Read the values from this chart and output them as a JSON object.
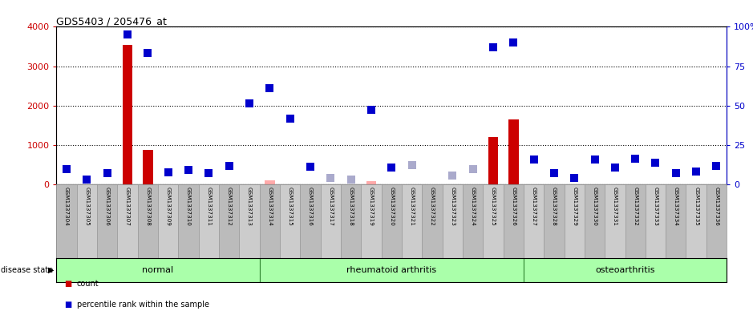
{
  "title": "GDS5403 / 205476_at",
  "samples": [
    "GSM1337304",
    "GSM1337305",
    "GSM1337306",
    "GSM1337307",
    "GSM1337308",
    "GSM1337309",
    "GSM1337310",
    "GSM1337311",
    "GSM1337312",
    "GSM1337313",
    "GSM1337314",
    "GSM1337315",
    "GSM1337316",
    "GSM1337317",
    "GSM1337318",
    "GSM1337319",
    "GSM1337320",
    "GSM1337321",
    "GSM1337322",
    "GSM1337323",
    "GSM1337324",
    "GSM1337325",
    "GSM1337326",
    "GSM1337327",
    "GSM1337328",
    "GSM1337329",
    "GSM1337330",
    "GSM1337331",
    "GSM1337332",
    "GSM1337333",
    "GSM1337334",
    "GSM1337335",
    "GSM1337336"
  ],
  "count_values": [
    0,
    0,
    0,
    3550,
    880,
    0,
    0,
    0,
    0,
    0,
    0,
    0,
    0,
    0,
    0,
    0,
    0,
    0,
    0,
    0,
    0,
    1200,
    1650,
    0,
    0,
    0,
    0,
    0,
    0,
    0,
    0,
    0,
    0
  ],
  "count_absent": [
    false,
    false,
    false,
    false,
    false,
    false,
    false,
    false,
    false,
    false,
    false,
    false,
    false,
    false,
    false,
    false,
    false,
    false,
    false,
    false,
    false,
    false,
    false,
    false,
    false,
    false,
    false,
    false,
    false,
    false,
    false,
    false,
    false
  ],
  "count_absent_values": [
    0,
    0,
    0,
    0,
    0,
    0,
    0,
    0,
    0,
    0,
    90,
    0,
    0,
    0,
    0,
    80,
    0,
    0,
    0,
    0,
    0,
    0,
    0,
    0,
    0,
    0,
    0,
    0,
    0,
    0,
    0,
    0,
    0
  ],
  "percentile_values": [
    380,
    130,
    290,
    3800,
    3330,
    300,
    370,
    290,
    470,
    2060,
    2450,
    1660,
    450,
    0,
    0,
    1900,
    420,
    0,
    0,
    0,
    0,
    3480,
    3600,
    620,
    290,
    170,
    620,
    430,
    650,
    550,
    280,
    330,
    470
  ],
  "percentile_absent": [
    false,
    false,
    false,
    false,
    false,
    false,
    false,
    false,
    false,
    false,
    false,
    false,
    false,
    true,
    true,
    false,
    false,
    true,
    true,
    true,
    true,
    false,
    false,
    false,
    false,
    false,
    false,
    false,
    false,
    false,
    false,
    false,
    false
  ],
  "percentile_absent_values": [
    0,
    0,
    0,
    0,
    0,
    0,
    0,
    0,
    0,
    0,
    0,
    0,
    0,
    160,
    130,
    0,
    0,
    490,
    0,
    230,
    380,
    0,
    0,
    0,
    0,
    0,
    0,
    0,
    0,
    0,
    0,
    0,
    0
  ],
  "groups": [
    {
      "label": "normal",
      "start": 0,
      "end": 9
    },
    {
      "label": "rheumatoid arthritis",
      "start": 10,
      "end": 22
    },
    {
      "label": "osteoarthritis",
      "start": 23,
      "end": 32
    }
  ],
  "ylim_left": [
    0,
    4000
  ],
  "yticks_left": [
    0,
    1000,
    2000,
    3000,
    4000
  ],
  "yticks_right": [
    0,
    25,
    50,
    75,
    100
  ],
  "bar_color": "#cc0000",
  "bar_absent_color": "#ffaaaa",
  "dot_color": "#0000cc",
  "dot_absent_color": "#aaaacc",
  "group_bg_color": "#aaffaa",
  "group_border_color": "#338833",
  "axis_label_left_color": "#cc0000",
  "axis_label_right_color": "#0000cc",
  "cell_color_odd": "#cccccc",
  "cell_color_even": "#bbbbbb",
  "grid_color": "#000000"
}
